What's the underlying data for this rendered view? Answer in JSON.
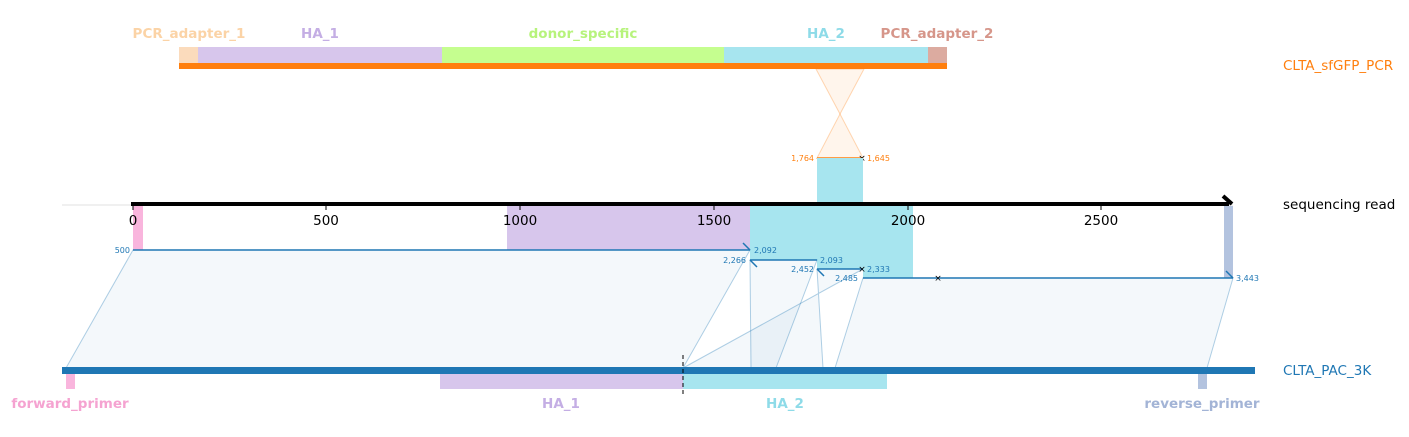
{
  "references": {
    "top": {
      "name": "CLTA_sfGFP_PCR",
      "color": "#ff7f0e",
      "features": [
        {
          "label": "PCR_adapter_1",
          "color": "#fbdbbc"
        },
        {
          "label": "HA_1",
          "color": "#d7c6ec"
        },
        {
          "label": "donor_specific",
          "color": "#c5fe8f"
        },
        {
          "label": "HA_2",
          "color": "#a7e5ef"
        },
        {
          "label": "PCR_adapter_2",
          "color": "#dcaba0"
        }
      ],
      "label_colors": [
        "#fbd3a6",
        "#c4aee4",
        "#b7f37c",
        "#8edbe8",
        "#d6968a"
      ]
    },
    "read": {
      "name": "sequencing read",
      "color": "#000000",
      "ticks": [
        "0",
        "500",
        "1000",
        "1500",
        "2000",
        "2500"
      ]
    },
    "bottom": {
      "name": "CLTA_PAC_3K",
      "color": "#1f77b4",
      "features": [
        {
          "label": "forward_primer",
          "color": "#f9b5dd"
        },
        {
          "label": "HA_1",
          "color": "#d7c6ec"
        },
        {
          "label": "HA_2",
          "color": "#a7e5ef"
        },
        {
          "label": "reverse_primer",
          "color": "#b3c3df"
        }
      ],
      "label_colors": [
        "#f5a3d1",
        "#c4aee4",
        "#8edbe8",
        "#a3b4d6"
      ]
    }
  },
  "alignments": {
    "top": {
      "read_start": "1,764",
      "ref_end": "1,645",
      "color": "#ff7f0e"
    },
    "bottom": [
      {
        "left": "500",
        "right": "2,092"
      },
      {
        "left": "2,266",
        "right": "2,093"
      },
      {
        "left": "2,452",
        "right": "2,333"
      },
      {
        "left": "2,485",
        "right": "3,443"
      }
    ],
    "color": "#1f77b4"
  }
}
